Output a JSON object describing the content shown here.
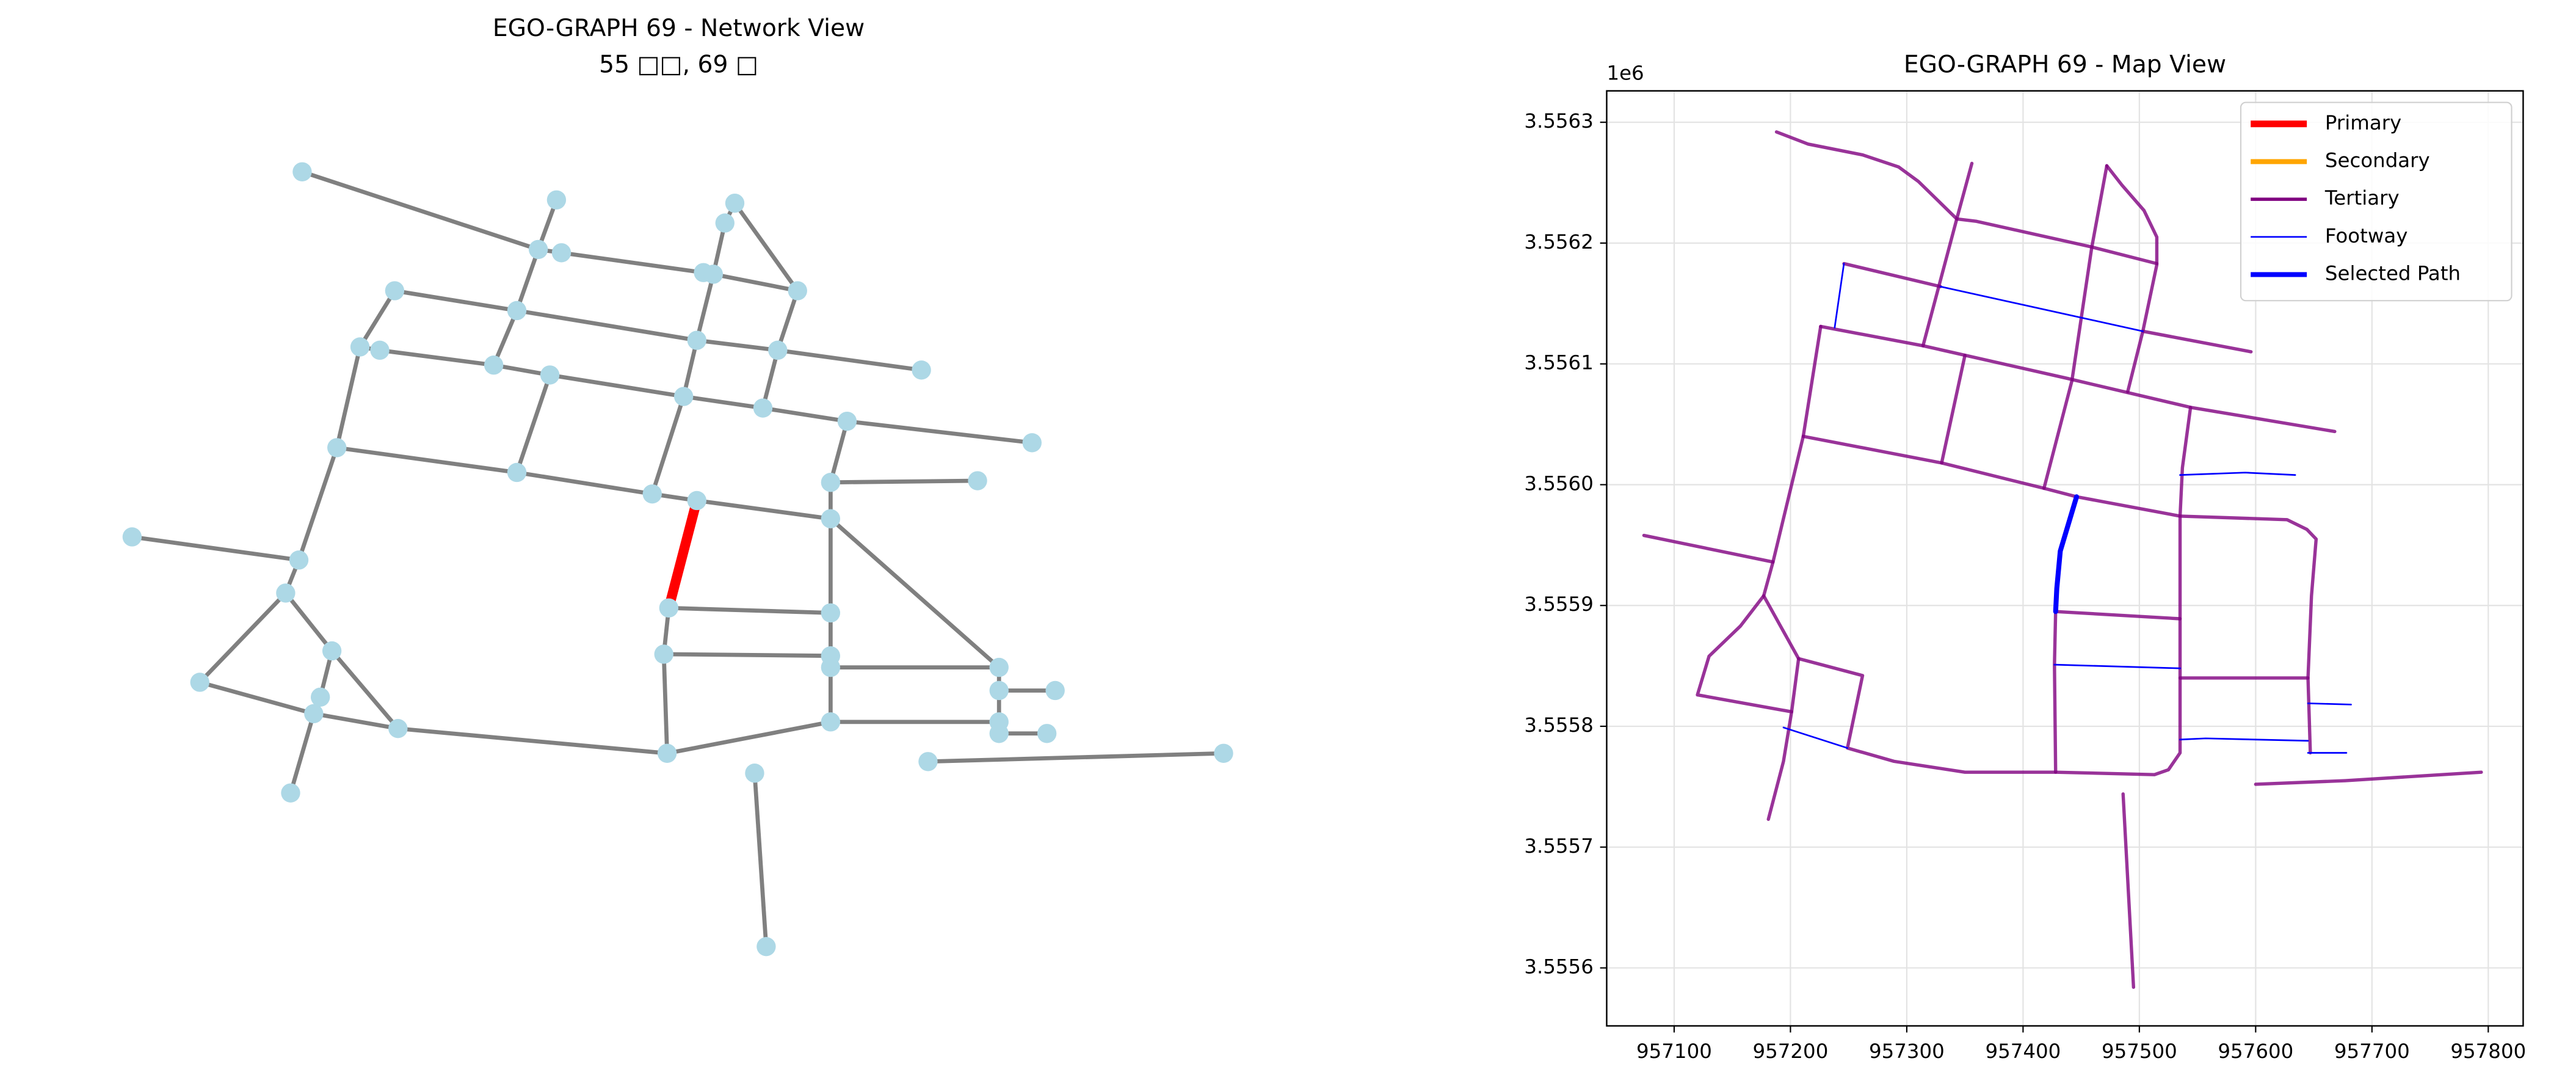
{
  "chart_data": [
    {
      "type": "network",
      "title": "EGO-GRAPH 69 - Network View",
      "subtitle": "55 □□, 69 □"
    },
    {
      "type": "line",
      "title": "EGO-GRAPH 69 - Map View",
      "y_offset_label": "1e6",
      "xlim": [
        957042,
        957830
      ],
      "ylim": [
        3.555552,
        3.556326
      ],
      "xticks": [
        957100,
        957200,
        957300,
        957400,
        957500,
        957600,
        957700,
        957800
      ],
      "yticks": [
        3.5556,
        3.5557,
        3.5558,
        3.5559,
        {
          "value": 3.556,
          "label": "3.5560"
        },
        3.5561,
        3.5562,
        3.5563
      ],
      "grid": true,
      "legend": "upper right",
      "series": [
        {
          "name": "Primary",
          "color": "#ff0000",
          "linewidth": 4,
          "segments": []
        },
        {
          "name": "Secondary",
          "color": "#ffa500",
          "linewidth": 3,
          "segments": []
        },
        {
          "name": "Tertiary",
          "color": "#800080",
          "linewidth": 2,
          "segments": [
            {
              "x": [
                957188,
                957215,
                957262,
                957293,
                957310,
                957343,
                957360,
                957458,
                957515
              ],
              "y": [
                3.556292,
                3.556282,
                3.556273,
                3.556263,
                3.556251,
                3.55622,
                3.556218,
                3.556197,
                3.556183
              ]
            },
            {
              "x": [
                957356,
                957343,
                957314
              ],
              "y": [
                3.556266,
                3.55622,
                3.556115
              ]
            },
            {
              "x": [
                957350,
                957330
              ],
              "y": [
                3.556107,
                3.556018
              ]
            },
            {
              "x": [
                957226,
                957314,
                957438,
                957544,
                957668
              ],
              "y": [
                3.556131,
                3.556115,
                3.556088,
                3.556064,
                3.556044
              ]
            },
            {
              "x": [
                957246,
                957329
              ],
              "y": [
                3.556183,
                3.556164
              ]
            },
            {
              "x": [
                957503,
                957596
              ],
              "y": [
                3.556127,
                3.55611
              ]
            },
            {
              "x": [
                957211,
                957330,
                957418,
                957446,
                957535,
                957627,
                957644,
                957652,
                957648,
                957645,
                957647
              ],
              "y": [
                3.55604,
                3.556018,
                3.555997,
                3.55599,
                3.555974,
                3.555971,
                3.555963,
                3.555955,
                3.555908,
                3.55584,
                3.555778
              ]
            },
            {
              "x": [
                957226,
                957211,
                957185,
                957177,
                957157,
                957130,
                957120,
                957201,
                957194,
                957181
              ],
              "y": [
                3.556131,
                3.55604,
                3.555936,
                3.555908,
                3.555883,
                3.555858,
                3.555826,
                3.555812,
                3.555771,
                3.555723
              ]
            },
            {
              "x": [
                957074,
                957185
              ],
              "y": [
                3.555958,
                3.555936
              ]
            },
            {
              "x": [
                957177,
                957207,
                957201
              ],
              "y": [
                3.555908,
                3.555856,
                3.555812
              ]
            },
            {
              "x": [
                957207,
                957262,
                957249,
                957289,
                957350,
                957428,
                957513,
                957525,
                957535,
                957535,
                957535,
                957537,
                957544
              ],
              "y": [
                3.555856,
                3.555842,
                3.555782,
                3.555771,
                3.555762,
                3.555762,
                3.55576,
                3.555764,
                3.555778,
                3.555889,
                3.555974,
                3.556014,
                3.556064
              ]
            },
            {
              "x": [
                957472,
                957459,
                957442,
                957418
              ],
              "y": [
                3.556264,
                3.556196,
                3.556086,
                3.555997
              ]
            },
            {
              "x": [
                957472,
                957485,
                957504,
                957515,
                957515,
                957503,
                957490
              ],
              "y": [
                3.556264,
                3.556248,
                3.556227,
                3.556205,
                3.556182,
                3.556127,
                3.556077
              ]
            },
            {
              "x": [
                957428,
                957427,
                957428
              ],
              "y": [
                3.555895,
                3.555851,
                3.555762
              ]
            },
            {
              "x": [
                957428,
                957535
              ],
              "y": [
                3.555895,
                3.555889
              ]
            },
            {
              "x": [
                957535,
                957645
              ],
              "y": [
                3.55584,
                3.55584
              ]
            },
            {
              "x": [
                957486,
                957495
              ],
              "y": [
                3.555744,
                3.555584
              ]
            },
            {
              "x": [
                957600,
                957677,
                957794
              ],
              "y": [
                3.555752,
                3.555755,
                3.555762
              ]
            }
          ]
        },
        {
          "name": "Footway",
          "color": "#0000ff",
          "linewidth": 1,
          "segments": [
            {
              "x": [
                957246,
                957238
              ],
              "y": [
                3.556183,
                3.55613
              ]
            },
            {
              "x": [
                957329,
                957503
              ],
              "y": [
                3.556164,
                3.556127
              ]
            },
            {
              "x": [
                957535,
                957591,
                957634
              ],
              "y": [
                3.556008,
                3.55601,
                3.556008
              ]
            },
            {
              "x": [
                957427,
                957535
              ],
              "y": [
                3.555851,
                3.555848
              ]
            },
            {
              "x": [
                957535,
                957557,
                957645
              ],
              "y": [
                3.555789,
                3.55579,
                3.555788
              ]
            },
            {
              "x": [
                957645,
                957682
              ],
              "y": [
                3.555819,
                3.555818
              ]
            },
            {
              "x": [
                957645,
                957678
              ],
              "y": [
                3.555778,
                3.555778
              ]
            },
            {
              "x": [
                957194,
                957249
              ],
              "y": [
                3.555799,
                3.555782
              ]
            }
          ]
        },
        {
          "name": "Selected Path",
          "color": "#0000ff",
          "linewidth": 3,
          "segments": [
            {
              "x": [
                957446,
                957432,
                957429,
                957428
              ],
              "y": [
                3.55599,
                3.555945,
                3.555914,
                3.555895
              ]
            }
          ]
        }
      ]
    }
  ]
}
